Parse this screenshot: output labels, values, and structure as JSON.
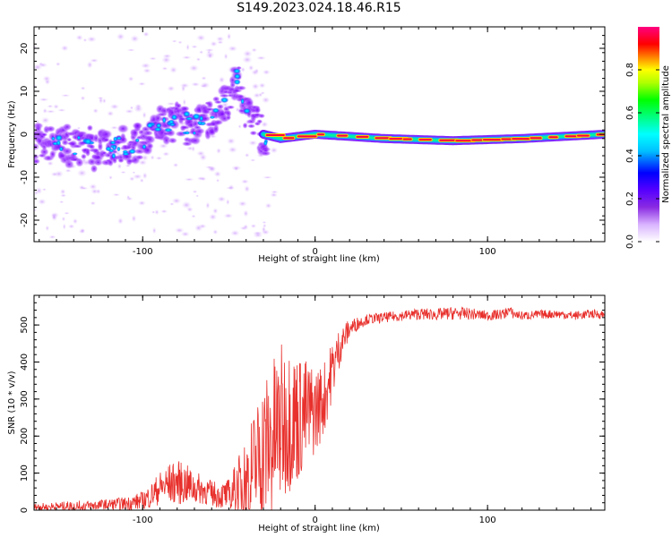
{
  "title": "S149.2023.024.18.46.R15",
  "colors": {
    "snr_line": "#e8302c",
    "background": "#ffffff",
    "axes": "#000000"
  },
  "chart_data": [
    {
      "type": "heatmap",
      "title": "S149.2023.024.18.46.R15",
      "xlabel": "Height of straight line (km)",
      "ylabel": "Frequency (Hz)",
      "xlim": [
        -163,
        168
      ],
      "ylim": [
        -25,
        25
      ],
      "xticks": [
        -100,
        0,
        100
      ],
      "yticks": [
        -20,
        -10,
        0,
        10,
        20
      ],
      "xtick_labels": [
        "-100",
        "0",
        "100"
      ],
      "ytick_labels": [
        "-20",
        "-10",
        "0",
        "10",
        "20"
      ],
      "colorbar": {
        "label": "Normalized spectral amplitude",
        "range": [
          0,
          1
        ],
        "ticks": [
          0.0,
          0.2,
          0.4,
          0.6,
          0.8
        ],
        "tick_labels": [
          "0.0",
          "0.2",
          "0.4",
          "0.6",
          "0.8"
        ],
        "colormap": "rainbow (white-violet-blue-cyan-green-yellow-red-magenta)"
      },
      "ridge": [
        {
          "x": -160,
          "y": -2
        },
        {
          "x": -140,
          "y": -3
        },
        {
          "x": -120,
          "y": -4
        },
        {
          "x": -100,
          "y": -2
        },
        {
          "x": -90,
          "y": 2
        },
        {
          "x": -80,
          "y": 3
        },
        {
          "x": -70,
          "y": 2
        },
        {
          "x": -60,
          "y": 4
        },
        {
          "x": -50,
          "y": 8
        },
        {
          "x": -45,
          "y": 14
        },
        {
          "x": -40,
          "y": 5
        },
        {
          "x": -30,
          "y": 0
        },
        {
          "x": -20,
          "y": -1
        },
        {
          "x": 0,
          "y": 0
        },
        {
          "x": 40,
          "y": -1
        },
        {
          "x": 80,
          "y": -1.5
        },
        {
          "x": 120,
          "y": -1
        },
        {
          "x": 168,
          "y": 0
        }
      ]
    },
    {
      "type": "line",
      "xlabel": "Height of straight line (km)",
      "ylabel": "SNR (10 * v/v)",
      "xlim": [
        -163,
        168
      ],
      "ylim": [
        0,
        580
      ],
      "xticks": [
        -100,
        0,
        100
      ],
      "yticks": [
        0,
        100,
        200,
        300,
        400,
        500
      ],
      "xtick_labels": [
        "-100",
        "0",
        "100"
      ],
      "ytick_labels": [
        "0",
        "100",
        "200",
        "300",
        "400",
        "500"
      ],
      "series": [
        {
          "x": [
            -163,
            -150,
            -140,
            -130,
            -120,
            -110,
            -100,
            -95,
            -90,
            -85,
            -80,
            -75,
            -70,
            -65,
            -60,
            -55,
            -50,
            -45,
            -40,
            -35,
            -30,
            -25,
            -20,
            -15,
            -10,
            -5,
            0,
            5,
            10,
            15,
            20,
            25,
            30,
            40,
            50,
            60,
            70,
            80,
            90,
            100,
            110,
            112,
            115,
            120,
            130,
            140,
            150,
            160,
            168
          ],
          "y": [
            8,
            10,
            10,
            12,
            15,
            18,
            25,
            40,
            60,
            70,
            75,
            70,
            60,
            55,
            45,
            40,
            40,
            60,
            80,
            120,
            160,
            190,
            230,
            250,
            250,
            260,
            270,
            300,
            380,
            450,
            490,
            505,
            515,
            520,
            525,
            530,
            528,
            532,
            530,
            525,
            530,
            540,
            530,
            525,
            528,
            530,
            525,
            530,
            528
          ],
          "noise_amp": [
            10,
            12,
            15,
            15,
            15,
            18,
            25,
            35,
            45,
            55,
            60,
            55,
            45,
            40,
            35,
            35,
            45,
            80,
            120,
            160,
            200,
            220,
            220,
            200,
            180,
            150,
            120,
            100,
            80,
            50,
            25,
            18,
            14,
            14,
            14,
            16,
            16,
            18,
            16,
            14,
            14,
            14,
            14,
            12,
            12,
            12,
            12,
            12,
            12
          ]
        }
      ]
    }
  ]
}
